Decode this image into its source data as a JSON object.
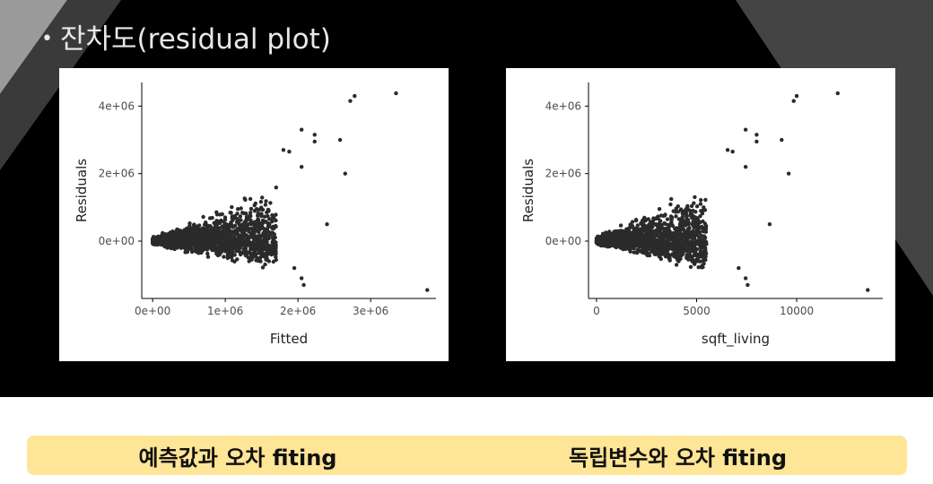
{
  "slide": {
    "bullet": "•",
    "title": "잔차도(residual plot)"
  },
  "captions": {
    "left": "예측값과 오차 fiting",
    "right": "독립변수와 오차 fiting"
  },
  "colors": {
    "background": "#000000",
    "points": "#2b2b2b",
    "caption_bar": "#ffe596",
    "deco_gray_light": "#9a9a9a",
    "deco_gray_dark": "#444444"
  },
  "chart_data": [
    {
      "type": "scatter",
      "title": "",
      "xlabel": "Fitted",
      "ylabel": "Residuals",
      "xlim": [
        -150000,
        3900000
      ],
      "ylim": [
        -1700000,
        4700000
      ],
      "x_ticks": [
        0,
        1000000,
        2000000,
        3000000
      ],
      "x_tick_labels": [
        "0e+00",
        "1e+06",
        "2e+06",
        "3e+06"
      ],
      "y_ticks": [
        0,
        2000000,
        4000000
      ],
      "y_tick_labels": [
        "0e+00",
        "2e+06",
        "4e+06"
      ],
      "grid": false,
      "outliers": [
        {
          "x": 3350000,
          "y": 4380000
        },
        {
          "x": 2780000,
          "y": 4300000
        },
        {
          "x": 2720000,
          "y": 4150000
        },
        {
          "x": 2050000,
          "y": 3300000
        },
        {
          "x": 2230000,
          "y": 3150000
        },
        {
          "x": 2230000,
          "y": 2950000
        },
        {
          "x": 2580000,
          "y": 3000000
        },
        {
          "x": 1800000,
          "y": 2700000
        },
        {
          "x": 1880000,
          "y": 2650000
        },
        {
          "x": 2650000,
          "y": 2000000
        },
        {
          "x": 2050000,
          "y": 2200000
        },
        {
          "x": 2400000,
          "y": 500000
        },
        {
          "x": 2050000,
          "y": -1100000
        },
        {
          "x": 2080000,
          "y": -1300000
        },
        {
          "x": 1950000,
          "y": -800000
        },
        {
          "x": 3780000,
          "y": -1450000
        }
      ]
    },
    {
      "type": "scatter",
      "title": "",
      "xlabel": "sqft_living",
      "ylabel": "Residuals",
      "xlim": [
        -400,
        14300
      ],
      "ylim": [
        -1700000,
        4700000
      ],
      "x_ticks": [
        0,
        5000,
        10000
      ],
      "x_tick_labels": [
        "0",
        "5000",
        "10000"
      ],
      "y_ticks": [
        0,
        2000000,
        4000000
      ],
      "y_tick_labels": [
        "0e+00",
        "2e+06",
        "4e+06"
      ],
      "grid": false,
      "outliers": [
        {
          "x": 12050,
          "y": 4380000
        },
        {
          "x": 10000,
          "y": 4300000
        },
        {
          "x": 9850,
          "y": 4150000
        },
        {
          "x": 7450,
          "y": 3300000
        },
        {
          "x": 8000,
          "y": 3150000
        },
        {
          "x": 8000,
          "y": 2950000
        },
        {
          "x": 9250,
          "y": 3000000
        },
        {
          "x": 6550,
          "y": 2700000
        },
        {
          "x": 6800,
          "y": 2650000
        },
        {
          "x": 9600,
          "y": 2000000
        },
        {
          "x": 7450,
          "y": 2200000
        },
        {
          "x": 8650,
          "y": 500000
        },
        {
          "x": 7450,
          "y": -1100000
        },
        {
          "x": 7550,
          "y": -1300000
        },
        {
          "x": 7100,
          "y": -800000
        },
        {
          "x": 13550,
          "y": -1450000
        }
      ]
    }
  ]
}
